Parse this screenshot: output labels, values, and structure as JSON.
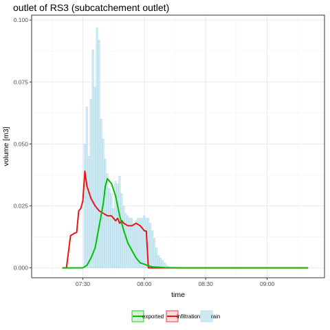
{
  "chart_data": {
    "type": "line",
    "title": "outlet of RS3 (subcatchement outlet)",
    "xlabel": "time",
    "ylabel": "volume [m3]",
    "ylim": [
      -0.004,
      0.102
    ],
    "xlim": [
      "07:05",
      "09:28"
    ],
    "y_ticks": [
      0.0,
      0.025,
      0.05,
      0.075,
      0.1
    ],
    "y_tick_labels": [
      "0.000",
      "0.025",
      "0.050",
      "0.075",
      "0.100"
    ],
    "x_ticks": [
      "07:30",
      "08:00",
      "08:30",
      "09:00"
    ],
    "grid": true,
    "legend_position": "bottom",
    "legend": [
      "exported",
      "infiltration",
      "rain"
    ],
    "colors": {
      "exported": "#00c000",
      "infiltration": "#ee1111",
      "rain_fill": "#cfe9f3",
      "rain_stroke": "#a9d8ea",
      "grid": "#ebebeb"
    },
    "rain": {
      "name": "rain",
      "x": [
        "07:31",
        "07:32",
        "07:33",
        "07:34",
        "07:35",
        "07:36",
        "07:37",
        "07:38",
        "07:39",
        "07:40",
        "07:41",
        "07:42",
        "07:43",
        "07:44",
        "07:45",
        "07:46",
        "07:47",
        "07:48",
        "07:49",
        "07:50",
        "07:51",
        "07:52",
        "07:53",
        "07:54",
        "07:55",
        "07:56",
        "07:57",
        "07:58",
        "07:59",
        "08:00",
        "08:01",
        "08:02",
        "08:03",
        "08:04",
        "08:05",
        "08:06",
        "08:07",
        "08:08",
        "08:09",
        "08:10",
        "08:11",
        "08:12"
      ],
      "values": [
        0.05,
        0.065,
        0.045,
        0.068,
        0.088,
        0.073,
        0.097,
        0.092,
        0.06,
        0.052,
        0.044,
        0.038,
        0.032,
        0.03,
        0.024,
        0.035,
        0.034,
        0.037,
        0.03,
        0.025,
        0.022,
        0.021,
        0.02,
        0.02,
        0.018,
        0.019,
        0.02,
        0.02,
        0.02,
        0.021,
        0.02,
        0.02,
        0.018,
        0.015,
        0.012,
        0.008,
        0.005,
        0.004,
        0.003,
        0.002,
        0.001,
        0.0005
      ]
    },
    "series": [
      {
        "name": "infiltration",
        "x": [
          "07:20",
          "07:22",
          "07:24",
          "07:26",
          "07:27",
          "07:28",
          "07:29",
          "07:30",
          "07:31",
          "07:32",
          "07:34",
          "07:36",
          "07:38",
          "07:40",
          "07:42",
          "07:44",
          "07:46",
          "07:47",
          "07:48",
          "07:49",
          "07:50",
          "07:52",
          "07:54",
          "07:56",
          "07:58",
          "07:59",
          "08:00",
          "08:01",
          "08:02",
          "08:04",
          "09:20"
        ],
        "values": [
          0.0,
          0.0,
          0.013,
          0.014,
          0.0143,
          0.023,
          0.024,
          0.027,
          0.039,
          0.033,
          0.028,
          0.025,
          0.023,
          0.022,
          0.021,
          0.021,
          0.019,
          0.02,
          0.018,
          0.019,
          0.018,
          0.017,
          0.017,
          0.018,
          0.017,
          0.016,
          0.015,
          0.0148,
          0.0,
          0.0,
          0.0
        ]
      },
      {
        "name": "exported",
        "x": [
          "07:20",
          "07:30",
          "07:32",
          "07:34",
          "07:36",
          "07:38",
          "07:40",
          "07:41",
          "07:42",
          "07:44",
          "07:46",
          "07:48",
          "07:50",
          "07:52",
          "07:54",
          "07:56",
          "07:58",
          "08:00",
          "08:02",
          "08:04",
          "08:06",
          "08:10",
          "08:20",
          "09:20"
        ],
        "values": [
          0.0,
          0.0,
          0.001,
          0.004,
          0.008,
          0.017,
          0.026,
          0.033,
          0.036,
          0.034,
          0.029,
          0.021,
          0.015,
          0.01,
          0.007,
          0.004,
          0.002,
          0.0015,
          0.0008,
          0.0004,
          0.0003,
          0.0001,
          0.0,
          0.0
        ]
      }
    ]
  }
}
